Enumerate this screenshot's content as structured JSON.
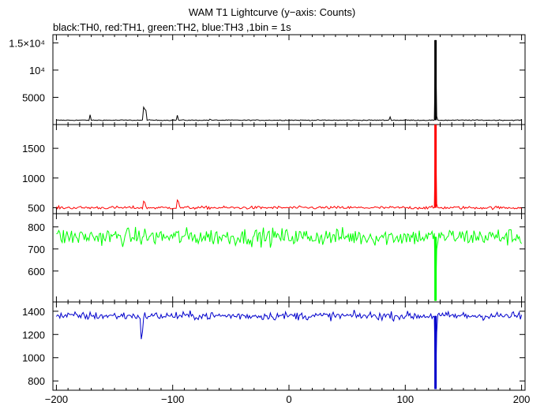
{
  "chart_data": {
    "type": "line",
    "title": "WAM T1 Lightcurve (y−axis: Counts)",
    "subtitle": "black:TH0, red:TH1, green:TH2, blue:TH3 ,1bin = 1s",
    "x_range": [
      -203,
      203
    ],
    "x_ticks": [
      -200,
      -100,
      0,
      100,
      200
    ],
    "x_tick_labels": [
      "−200",
      "−100",
      "0",
      "100",
      "200"
    ],
    "panels": [
      {
        "name": "TH0",
        "color": "#000000",
        "y_range": [
          0,
          16500
        ],
        "y_ticks": [
          5000,
          10000,
          15000
        ],
        "y_tick_labels": [
          "5000",
          "10⁴",
          "1.5×10⁴"
        ],
        "base": 800,
        "noise": 60,
        "burst_peak": 15500,
        "post_burst": 1500,
        "spikes": [
          [
            -171,
            1800
          ],
          [
            -125,
            3200
          ],
          [
            -124,
            2800
          ],
          [
            -123,
            2600
          ],
          [
            -96,
            1700
          ],
          [
            -68,
            1000
          ],
          [
            87,
            1400
          ]
        ]
      },
      {
        "name": "TH1",
        "color": "#ff0000",
        "y_range": [
          400,
          1900
        ],
        "y_ticks": [
          500,
          1000,
          1500
        ],
        "y_tick_labels": [
          "500",
          "1000",
          "1500"
        ],
        "base": 500,
        "noise": 18,
        "burst_peak": 1900,
        "post_burst": 560,
        "spikes": [
          [
            -125,
            610
          ],
          [
            -124,
            590
          ],
          [
            -96,
            630
          ],
          [
            -95,
            600
          ]
        ]
      },
      {
        "name": "TH2",
        "color": "#00ff00",
        "y_range": [
          460,
          860
        ],
        "y_ticks": [
          600,
          700,
          800
        ],
        "y_tick_labels": [
          "600",
          "700",
          "800"
        ],
        "base": 755,
        "noise": 28,
        "burst_peak": 465,
        "post_burst": 700,
        "spikes": []
      },
      {
        "name": "TH3",
        "color": "#0000cc",
        "y_range": [
          720,
          1480
        ],
        "y_ticks": [
          800,
          1000,
          1200,
          1400
        ],
        "y_tick_labels": [
          "800",
          "1000",
          "1200",
          "1400"
        ],
        "base": 1360,
        "noise": 25,
        "burst_peak": 730,
        "post_burst": 1220,
        "spikes": [
          [
            -127,
            1160
          ],
          [
            -126,
            1220
          ]
        ]
      }
    ],
    "burst_time": 126,
    "grid": false,
    "legend": "top-left"
  }
}
